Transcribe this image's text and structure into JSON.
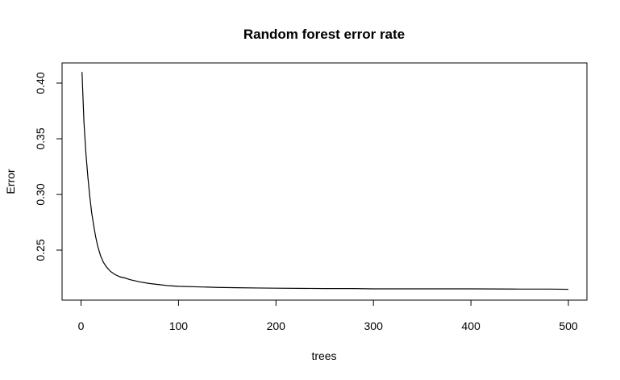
{
  "chart_data": {
    "type": "line",
    "title": "Random forest error rate",
    "xlabel": "trees",
    "ylabel": "Error",
    "xlim": [
      0,
      500
    ],
    "ylim": [
      0.21,
      0.41
    ],
    "x_ticks": [
      0,
      100,
      200,
      300,
      400,
      500
    ],
    "y_ticks": [
      0.25,
      0.3,
      0.35,
      0.4
    ],
    "x_tick_labels": [
      "0",
      "100",
      "200",
      "300",
      "400",
      "500"
    ],
    "y_tick_labels": [
      "0.25",
      "0.30",
      "0.35",
      "0.40"
    ],
    "grid": false,
    "series": [
      {
        "color": "#000000",
        "x": [
          1,
          3,
          5,
          7,
          9,
          11,
          13,
          15,
          17,
          20,
          23,
          26,
          30,
          35,
          40,
          45,
          50,
          60,
          70,
          80,
          90,
          100,
          120,
          140,
          160,
          180,
          200,
          250,
          280,
          300,
          350,
          400,
          450,
          480,
          500
        ],
        "y": [
          0.41,
          0.365,
          0.337,
          0.316,
          0.298,
          0.283,
          0.272,
          0.262,
          0.254,
          0.245,
          0.239,
          0.235,
          0.231,
          0.228,
          0.226,
          0.225,
          0.2235,
          0.2215,
          0.22,
          0.219,
          0.218,
          0.2175,
          0.217,
          0.2165,
          0.2162,
          0.216,
          0.2158,
          0.2155,
          0.2155,
          0.2152,
          0.2152,
          0.2152,
          0.215,
          0.215,
          0.2148
        ]
      }
    ]
  }
}
